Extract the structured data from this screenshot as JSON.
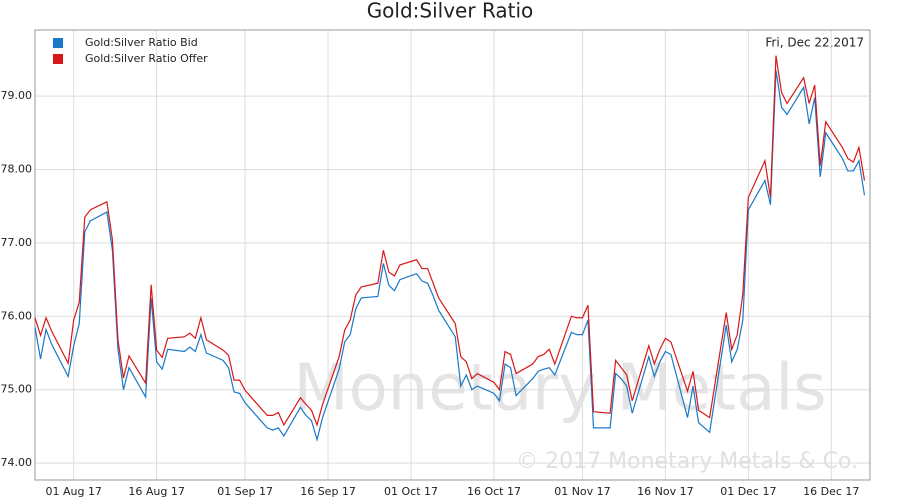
{
  "chart_data": {
    "type": "line",
    "title": "Gold:Silver Ratio",
    "annotation": "Fri, Dec 22,2017",
    "watermark": "Monetary Metals",
    "copyright": "© 2017 Monetary Metals & Co.",
    "x": [
      "2017-07-25",
      "2017-07-26",
      "2017-07-27",
      "2017-07-28",
      "2017-07-31",
      "2017-08-01",
      "2017-08-02",
      "2017-08-03",
      "2017-08-04",
      "2017-08-07",
      "2017-08-08",
      "2017-08-09",
      "2017-08-10",
      "2017-08-11",
      "2017-08-14",
      "2017-08-15",
      "2017-08-16",
      "2017-08-17",
      "2017-08-18",
      "2017-08-21",
      "2017-08-22",
      "2017-08-23",
      "2017-08-24",
      "2017-08-25",
      "2017-08-28",
      "2017-08-29",
      "2017-08-30",
      "2017-08-31",
      "2017-09-01",
      "2017-09-05",
      "2017-09-06",
      "2017-09-07",
      "2017-09-08",
      "2017-09-11",
      "2017-09-12",
      "2017-09-13",
      "2017-09-14",
      "2017-09-15",
      "2017-09-18",
      "2017-09-19",
      "2017-09-20",
      "2017-09-21",
      "2017-09-22",
      "2017-09-25",
      "2017-09-26",
      "2017-09-27",
      "2017-09-28",
      "2017-09-29",
      "2017-10-02",
      "2017-10-03",
      "2017-10-04",
      "2017-10-05",
      "2017-10-06",
      "2017-10-09",
      "2017-10-10",
      "2017-10-11",
      "2017-10-12",
      "2017-10-13",
      "2017-10-16",
      "2017-10-17",
      "2017-10-18",
      "2017-10-19",
      "2017-10-20",
      "2017-10-23",
      "2017-10-24",
      "2017-10-25",
      "2017-10-26",
      "2017-10-27",
      "2017-10-30",
      "2017-10-31",
      "2017-11-01",
      "2017-11-02",
      "2017-11-03",
      "2017-11-06",
      "2017-11-07",
      "2017-11-08",
      "2017-11-09",
      "2017-11-10",
      "2017-11-13",
      "2017-11-14",
      "2017-11-15",
      "2017-11-16",
      "2017-11-17",
      "2017-11-20",
      "2017-11-21",
      "2017-11-22",
      "2017-11-24",
      "2017-11-27",
      "2017-11-28",
      "2017-11-29",
      "2017-11-30",
      "2017-12-01",
      "2017-12-04",
      "2017-12-05",
      "2017-12-06",
      "2017-12-07",
      "2017-12-08",
      "2017-12-11",
      "2017-12-12",
      "2017-12-13",
      "2017-12-14",
      "2017-12-15",
      "2017-12-18",
      "2017-12-19",
      "2017-12-20",
      "2017-12-21",
      "2017-12-22"
    ],
    "series": [
      {
        "name": "Gold:Silver Ratio Bid",
        "color": "#1a78c8",
        "values": [
          75.85,
          75.42,
          75.82,
          75.62,
          75.18,
          75.6,
          75.9,
          77.15,
          77.3,
          77.42,
          76.9,
          75.55,
          75.0,
          75.3,
          74.9,
          76.25,
          75.38,
          75.28,
          75.55,
          75.52,
          75.58,
          75.52,
          75.75,
          75.5,
          75.4,
          75.3,
          74.97,
          74.95,
          74.82,
          74.48,
          74.45,
          74.48,
          74.37,
          74.76,
          74.65,
          74.58,
          74.32,
          74.62,
          75.28,
          75.65,
          75.75,
          76.1,
          76.25,
          76.27,
          76.72,
          76.42,
          76.35,
          76.5,
          76.58,
          76.48,
          76.45,
          76.28,
          76.08,
          75.72,
          75.05,
          75.2,
          75.0,
          75.05,
          74.95,
          74.85,
          75.35,
          75.3,
          74.92,
          75.15,
          75.25,
          75.28,
          75.3,
          75.2,
          75.78,
          75.75,
          75.75,
          75.95,
          74.48,
          74.48,
          75.22,
          75.15,
          75.05,
          74.68,
          75.45,
          75.18,
          75.38,
          75.52,
          75.48,
          74.62,
          75.05,
          74.55,
          74.42,
          75.88,
          75.38,
          75.55,
          75.95,
          77.45,
          77.85,
          77.52,
          79.35,
          78.85,
          78.75,
          79.12,
          78.62,
          78.98,
          77.9,
          78.5,
          78.15,
          77.98,
          77.98,
          78.12,
          77.65
        ]
      },
      {
        "name": "Gold:Silver Ratio Offer",
        "color": "#d81818",
        "values": [
          75.98,
          75.74,
          75.98,
          75.8,
          75.36,
          75.95,
          76.19,
          77.35,
          77.45,
          77.56,
          77.04,
          75.68,
          75.16,
          75.46,
          75.09,
          76.43,
          75.54,
          75.44,
          75.7,
          75.72,
          75.77,
          75.7,
          75.98,
          75.68,
          75.54,
          75.47,
          75.13,
          75.13,
          74.99,
          74.65,
          74.65,
          74.69,
          74.52,
          74.89,
          74.8,
          74.72,
          74.52,
          74.8,
          75.45,
          75.81,
          75.95,
          76.29,
          76.4,
          76.45,
          76.9,
          76.6,
          76.55,
          76.7,
          76.77,
          76.65,
          76.65,
          76.45,
          76.25,
          75.9,
          75.45,
          75.38,
          75.15,
          75.22,
          75.1,
          75.0,
          75.52,
          75.48,
          75.22,
          75.35,
          75.45,
          75.48,
          75.55,
          75.35,
          76.0,
          75.98,
          75.98,
          76.15,
          74.7,
          74.68,
          75.4,
          75.3,
          75.2,
          74.85,
          75.6,
          75.35,
          75.55,
          75.7,
          75.65,
          74.98,
          75.25,
          74.72,
          74.62,
          76.05,
          75.55,
          75.75,
          76.3,
          77.62,
          78.12,
          77.62,
          79.55,
          79.05,
          78.9,
          79.25,
          78.9,
          79.15,
          78.05,
          78.65,
          78.3,
          78.15,
          78.1,
          78.3,
          77.85
        ]
      }
    ],
    "xlim": [
      "2017-07-25",
      "2017-12-23"
    ],
    "xticks": [
      {
        "value": "2017-08-01",
        "label": "01 Aug 17"
      },
      {
        "value": "2017-08-16",
        "label": "16 Aug 17"
      },
      {
        "value": "2017-09-01",
        "label": "01 Sep 17"
      },
      {
        "value": "2017-09-16",
        "label": "16 Sep 17"
      },
      {
        "value": "2017-10-01",
        "label": "01 Oct 17"
      },
      {
        "value": "2017-10-16",
        "label": "16 Oct 17"
      },
      {
        "value": "2017-11-01",
        "label": "01 Nov 17"
      },
      {
        "value": "2017-11-16",
        "label": "16 Nov 17"
      },
      {
        "value": "2017-12-01",
        "label": "01 Dec 17"
      },
      {
        "value": "2017-12-16",
        "label": "16 Dec 17"
      }
    ],
    "ylim": [
      73.77,
      79.9
    ],
    "yticks": [
      {
        "value": 74,
        "label": "74.00"
      },
      {
        "value": 75,
        "label": "75.00"
      },
      {
        "value": 76,
        "label": "76.00"
      },
      {
        "value": 77,
        "label": "77.00"
      },
      {
        "value": 78,
        "label": "78.00"
      },
      {
        "value": 79,
        "label": "79.00"
      }
    ],
    "grid": true
  }
}
